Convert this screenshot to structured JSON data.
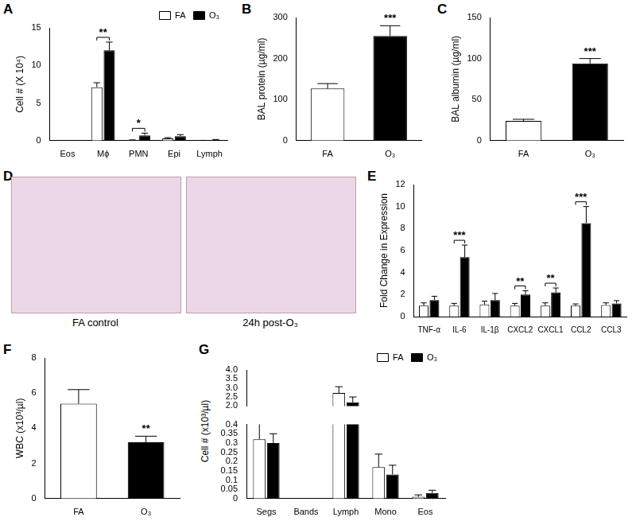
{
  "chart_data": [
    {
      "panel": "A",
      "type": "bar",
      "y_label": "Cell # (X 10⁴)",
      "categories": [
        "Eos",
        "Mϕ",
        "PMN",
        "Epi",
        "Lymph"
      ],
      "series": [
        {
          "name": "FA",
          "color": "#ffffff",
          "values": [
            0,
            7.1,
            0.05,
            0.3,
            0.02
          ],
          "errors": [
            0,
            0.6,
            0.05,
            0.1,
            0.02
          ]
        },
        {
          "name": "O₃",
          "color": "#000000",
          "values": [
            0,
            12,
            0.7,
            0.6,
            0.1
          ],
          "errors": [
            0,
            1.1,
            0.3,
            0.2,
            0.05
          ]
        }
      ],
      "significance": [
        null,
        "**",
        "*",
        null,
        null
      ],
      "ylim": [
        0,
        15
      ],
      "yticks": [
        0,
        5,
        10,
        15
      ],
      "grid": false,
      "legend": "upper right"
    },
    {
      "panel": "B",
      "type": "bar",
      "y_label": "BAL protein (µg/ml)",
      "categories": [
        "FA",
        "O₃"
      ],
      "values": [
        127,
        255
      ],
      "errors": [
        12,
        25
      ],
      "colors": [
        "#ffffff",
        "#000000"
      ],
      "significance": [
        null,
        "***"
      ],
      "ylim": [
        0,
        300
      ],
      "yticks": [
        0,
        100,
        200,
        300
      ],
      "grid": false
    },
    {
      "panel": "C",
      "type": "bar",
      "y_label": "BAL albumin (µg/ml)",
      "categories": [
        "FA",
        "O₃"
      ],
      "values": [
        24,
        94
      ],
      "errors": [
        2,
        6
      ],
      "colors": [
        "#ffffff",
        "#000000"
      ],
      "significance": [
        null,
        "***"
      ],
      "ylim": [
        0,
        150
      ],
      "yticks": [
        0,
        50,
        100,
        150
      ],
      "grid": false
    },
    {
      "panel": "E",
      "type": "bar",
      "y_label": "Fold Change in Expression",
      "categories": [
        "TNF-α",
        "IL-6",
        "IL-1β",
        "CXCL2",
        "CXCL1",
        "CCL2",
        "CCL3"
      ],
      "series": [
        {
          "name": "FA",
          "color": "#ffffff",
          "values": [
            1,
            1,
            1.1,
            1,
            1,
            1,
            1.05
          ],
          "errors": [
            0.25,
            0.2,
            0.3,
            0.2,
            0.25,
            0.15,
            0.2
          ]
        },
        {
          "name": "O₃",
          "color": "#000000",
          "values": [
            1.5,
            5.4,
            1.5,
            2,
            2.2,
            8.5,
            1.2
          ],
          "errors": [
            0.35,
            1.1,
            0.6,
            0.35,
            0.4,
            1.5,
            0.25
          ]
        }
      ],
      "significance": [
        null,
        "***",
        null,
        "**",
        "**",
        "***",
        null
      ],
      "ylim": [
        0,
        12
      ],
      "yticks": [
        0,
        2,
        4,
        6,
        8,
        10,
        12
      ],
      "grid": false
    },
    {
      "panel": "F",
      "type": "bar",
      "y_label": "WBC (x10³/µl)",
      "categories": [
        "FA",
        "O₃"
      ],
      "values": [
        5.4,
        3.2
      ],
      "errors": [
        0.8,
        0.35
      ],
      "colors": [
        "#ffffff",
        "#000000"
      ],
      "significance": [
        null,
        "**"
      ],
      "ylim": [
        0,
        8
      ],
      "yticks": [
        0,
        2,
        4,
        6,
        8
      ],
      "grid": false
    },
    {
      "panel": "G",
      "type": "bar",
      "y_label": "Cell # (x10³/µl)",
      "categories": [
        "Segs",
        "Bands",
        "Lymph",
        "Mono",
        "Eos"
      ],
      "series": [
        {
          "name": "FA",
          "color": "#ffffff",
          "values": [
            0.32,
            0,
            2.72,
            0.17,
            0.01
          ],
          "errors": [
            0.09,
            0,
            0.35,
            0.07,
            0.01
          ]
        },
        {
          "name": "O₃",
          "color": "#000000",
          "values": [
            0.3,
            0,
            2.2,
            0.13,
            0.03
          ],
          "errors": [
            0.05,
            0,
            0.3,
            0.05,
            0.015
          ]
        }
      ],
      "ylim": [
        0,
        4
      ],
      "y_break": [
        0.4,
        2
      ],
      "yticks": [
        0,
        0.05,
        0.1,
        0.15,
        0.2,
        0.25,
        0.3,
        0.35,
        0.4,
        {
          "value": 2,
          "label": "2.0"
        },
        {
          "value": 2.5,
          "label": "2.5"
        },
        {
          "value": 3,
          "label": "3.0"
        },
        {
          "value": 3.5,
          "label": "3.5"
        },
        {
          "value": 4,
          "label": "4.0"
        }
      ],
      "grid": false,
      "legend": "upper right"
    }
  ],
  "panel_D": {
    "panel": "D",
    "captions": [
      "FA control",
      "24h post-O₃"
    ]
  }
}
